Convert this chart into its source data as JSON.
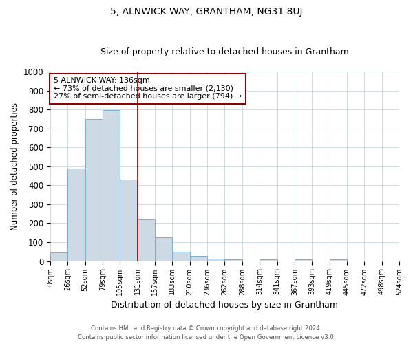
{
  "title": "5, ALNWICK WAY, GRANTHAM, NG31 8UJ",
  "subtitle": "Size of property relative to detached houses in Grantham",
  "xlabel": "Distribution of detached houses by size in Grantham",
  "ylabel": "Number of detached properties",
  "bin_labels": [
    "0sqm",
    "26sqm",
    "52sqm",
    "79sqm",
    "105sqm",
    "131sqm",
    "157sqm",
    "183sqm",
    "210sqm",
    "236sqm",
    "262sqm",
    "288sqm",
    "314sqm",
    "341sqm",
    "367sqm",
    "393sqm",
    "419sqm",
    "445sqm",
    "472sqm",
    "498sqm",
    "524sqm"
  ],
  "bar_heights": [
    45,
    490,
    750,
    795,
    430,
    220,
    125,
    48,
    27,
    12,
    10,
    0,
    10,
    0,
    10,
    0,
    10,
    0,
    0,
    0
  ],
  "bar_color": "#cdd9e5",
  "bar_edgecolor": "#7aafc9",
  "property_line_index": 5,
  "property_line_color": "#8b0000",
  "annotation_text": "5 ALNWICK WAY: 136sqm\n← 73% of detached houses are smaller (2,130)\n27% of semi-detached houses are larger (794) →",
  "annotation_box_edgecolor": "#8b0000",
  "ylim": [
    0,
    1000
  ],
  "yticks": [
    0,
    100,
    200,
    300,
    400,
    500,
    600,
    700,
    800,
    900,
    1000
  ],
  "footer_line1": "Contains HM Land Registry data © Crown copyright and database right 2024.",
  "footer_line2": "Contains public sector information licensed under the Open Government Licence v3.0.",
  "bg_color": "#ffffff",
  "grid_color": "#c0cdd8",
  "title_fontsize": 10,
  "subtitle_fontsize": 9
}
